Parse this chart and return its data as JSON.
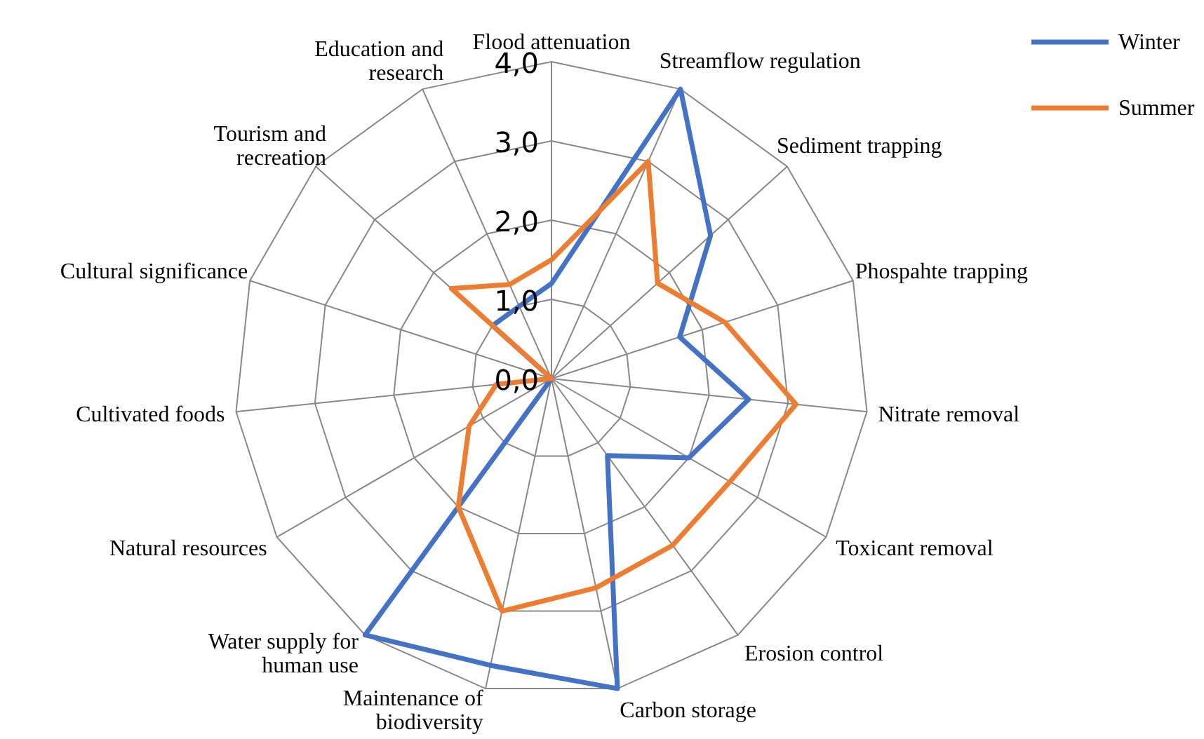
{
  "chart_data": {
    "type": "radar",
    "categories": [
      "Flood attenuation",
      "Streamflow regulation",
      "Sediment trapping",
      "Phospahte trapping",
      "Nitrate removal",
      "Toxicant removal",
      "Erosion control",
      "Carbon storage",
      "Maintenance of\nbiodiversity",
      "Water supply for\nhuman use",
      "Natural resources",
      "Cultivated foods",
      "Cultural significance",
      "Tourism and\nrecreation",
      "Education and\nresearch"
    ],
    "series": [
      {
        "name": "Winter",
        "color": "#4472c4",
        "values": [
          1.2,
          4.0,
          2.7,
          1.7,
          2.5,
          2.0,
          1.2,
          4.0,
          3.7,
          4.0,
          0,
          0,
          0,
          1.0,
          1.0
        ]
      },
      {
        "name": "Summer",
        "color": "#ed7d31",
        "values": [
          1.5,
          3.0,
          1.8,
          2.3,
          3.1,
          2.6,
          2.6,
          2.7,
          3.0,
          2.0,
          1.2,
          0.7,
          0,
          1.7,
          1.3
        ]
      }
    ],
    "ylim": [
      0,
      4
    ],
    "yticks": [
      {
        "value": 0,
        "label": "0,0"
      },
      {
        "value": 1,
        "label": "1,0"
      },
      {
        "value": 2,
        "label": "2,0"
      },
      {
        "value": 3,
        "label": "3,0"
      },
      {
        "value": 4,
        "label": "4,0"
      }
    ],
    "grid": true,
    "legend": "top right",
    "marker": "none",
    "line_style": "solid"
  }
}
